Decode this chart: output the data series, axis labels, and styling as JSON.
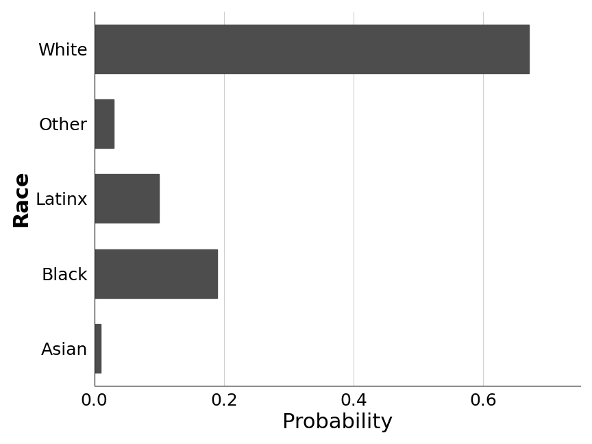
{
  "categories": [
    "Asian",
    "Black",
    "Latinx",
    "Other",
    "White"
  ],
  "values": [
    0.01,
    0.19,
    0.1,
    0.03,
    0.67
  ],
  "bar_color": "#4d4d4d",
  "xlabel": "Probability",
  "ylabel": "Race",
  "xlim": [
    0,
    0.75
  ],
  "xticks": [
    0.0,
    0.2,
    0.4,
    0.6
  ],
  "background_color": "#ffffff",
  "grid_color": "#d0d0d0",
  "xlabel_fontsize": 22,
  "ylabel_fontsize": 22,
  "ylabel_fontweight": "bold",
  "tick_fontsize": 18,
  "bar_height": 0.65
}
